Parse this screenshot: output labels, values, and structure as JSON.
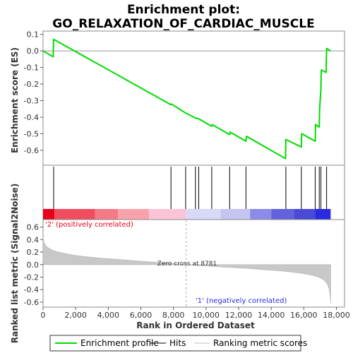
{
  "chart_data": {
    "type": "line",
    "title_line1": "Enrichment plot:",
    "title_line2": "GO_RELAXATION_OF_CARDIAC_MUSCLE",
    "xlabel": "Rank in Ordered Dataset",
    "ylabel_top": "Enrichment score (ES)",
    "ylabel_bottom": "Ranked list metric (Signal2Noise)",
    "xlim": [
      0,
      18500
    ],
    "x_ticks": [
      0,
      2000,
      4000,
      6000,
      8000,
      10000,
      12000,
      14000,
      16000,
      18000
    ],
    "x_tick_labels": [
      "0",
      "2,000",
      "4,000",
      "6,000",
      "8,000",
      "10,000",
      "12,000",
      "14,000",
      "16,000",
      "18,000"
    ],
    "es_ylim": [
      -0.69,
      0.12
    ],
    "es_ticks": [
      0.1,
      0.0,
      -0.1,
      -0.2,
      -0.3,
      -0.4,
      -0.5,
      -0.6
    ],
    "es_tick_labels": [
      "0.1",
      "0.0",
      "-0.1",
      "-0.2",
      "-0.3",
      "-0.4",
      "-0.5",
      "-0.6"
    ],
    "metric_ylim": [
      -0.68,
      0.72
    ],
    "metric_ticks": [
      0.6,
      0.4,
      0.2,
      0.0,
      -0.2,
      -0.4,
      -0.6
    ],
    "metric_tick_labels": [
      "0.6",
      "0.4",
      "0.2",
      "0.0",
      "-0.2",
      "-0.4",
      "-0.6"
    ],
    "hits": [
      650,
      7850,
      8750,
      9350,
      9550,
      10350,
      11450,
      12450,
      14900,
      15850,
      16700,
      16950,
      17050,
      17400
    ],
    "es_curve": {
      "x": [
        0,
        620,
        650,
        7850,
        7870,
        8750,
        9350,
        9550,
        10350,
        10380,
        11450,
        11480,
        12450,
        12480,
        14880,
        14900,
        15850,
        15870,
        16700,
        16720,
        16950,
        16970,
        17050,
        17070,
        17370,
        17400,
        17650
      ],
      "y": [
        0.0,
        -0.035,
        0.07,
        -0.325,
        -0.32,
        -0.375,
        -0.405,
        -0.41,
        -0.455,
        -0.445,
        -0.505,
        -0.49,
        -0.545,
        -0.515,
        -0.65,
        -0.535,
        -0.58,
        -0.5,
        -0.545,
        -0.445,
        -0.46,
        -0.35,
        -0.235,
        -0.115,
        -0.13,
        0.015,
        0.0
      ]
    },
    "metric_curve": {
      "x": [
        0,
        30,
        100,
        250,
        500,
        800,
        1200,
        1800,
        2500,
        3500,
        4500,
        5500,
        6500,
        7500,
        8300,
        8781,
        9500,
        10500,
        11500,
        12500,
        13500,
        14500,
        15300,
        16000,
        16500,
        16900,
        17200,
        17400,
        17550,
        17620,
        17650
      ],
      "y": [
        0.44,
        0.38,
        0.33,
        0.28,
        0.24,
        0.21,
        0.185,
        0.155,
        0.13,
        0.105,
        0.085,
        0.065,
        0.045,
        0.025,
        0.01,
        0.0,
        -0.015,
        -0.03,
        -0.045,
        -0.06,
        -0.08,
        -0.1,
        -0.12,
        -0.145,
        -0.17,
        -0.2,
        -0.24,
        -0.29,
        -0.38,
        -0.5,
        -0.62
      ]
    },
    "zero_cross_label": "Zero cross at 8781",
    "zero_cross_x": 8781,
    "positive_label": "'2' (positively correlated)",
    "negative_label": "'1' (negatively correlated)",
    "heat_bar_segments": [
      {
        "x0": 0,
        "x1": 700,
        "color": "#e8001a"
      },
      {
        "x0": 700,
        "x1": 3200,
        "color": "#f04e5e"
      },
      {
        "x0": 3200,
        "x1": 4600,
        "color": "#f47a88"
      },
      {
        "x0": 4600,
        "x1": 6500,
        "color": "#f8a3ac"
      },
      {
        "x0": 6500,
        "x1": 8781,
        "color": "#fbc4d6"
      },
      {
        "x0": 8781,
        "x1": 10900,
        "color": "#d8d8f8"
      },
      {
        "x0": 10900,
        "x1": 12700,
        "color": "#c4c4f0"
      },
      {
        "x0": 12700,
        "x1": 14000,
        "color": "#8c8ce8"
      },
      {
        "x0": 14000,
        "x1": 15400,
        "color": "#6262dc"
      },
      {
        "x0": 15400,
        "x1": 16700,
        "color": "#4a4ad6"
      },
      {
        "x0": 16700,
        "x1": 17650,
        "color": "#2a2ae0"
      }
    ],
    "colors": {
      "es_line": "#00dd00",
      "hit": "#000000",
      "metric_fill": "#c8c8c8",
      "zero_line": "#aaaaaa"
    },
    "legend": [
      {
        "label": "Enrichment profile",
        "kind": "es"
      },
      {
        "label": "Hits",
        "kind": "hit"
      },
      {
        "label": "Ranking metric scores",
        "kind": "metric"
      }
    ]
  }
}
